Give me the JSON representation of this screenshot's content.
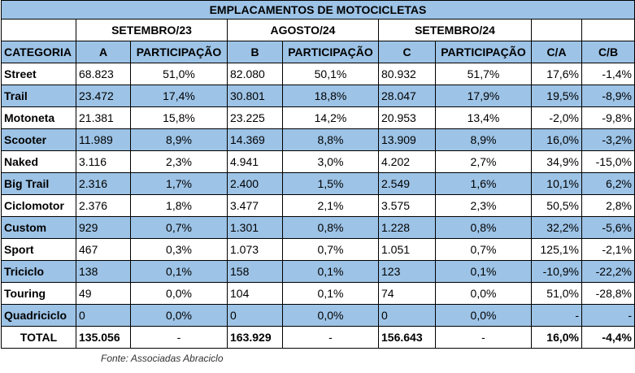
{
  "title": "EMPLACAMENTOS DE MOTOCICLETAS",
  "period_headers": [
    "SETEMBRO/23",
    "AGOSTO/24",
    "SETEMBRO/24"
  ],
  "columns": [
    "CATEGORIA",
    "A",
    "PARTICIPAÇÃO",
    "B",
    "PARTICIPAÇÃO",
    "C",
    "PARTICIPAÇÃO",
    "C/A",
    "C/B"
  ],
  "rows": [
    [
      "Street",
      "68.823",
      "51,0%",
      "82.080",
      "50,1%",
      "80.932",
      "51,7%",
      "17,6%",
      "-1,4%"
    ],
    [
      "Trail",
      "23.472",
      "17,4%",
      "30.801",
      "18,8%",
      "28.047",
      "17,9%",
      "19,5%",
      "-8,9%"
    ],
    [
      "Motoneta",
      "21.381",
      "15,8%",
      "23.225",
      "14,2%",
      "20.953",
      "13,4%",
      "-2,0%",
      "-9,8%"
    ],
    [
      "Scooter",
      "11.989",
      "8,9%",
      "14.369",
      "8,8%",
      "13.909",
      "8,9%",
      "16,0%",
      "-3,2%"
    ],
    [
      "Naked",
      "3.116",
      "2,3%",
      "4.941",
      "3,0%",
      "4.202",
      "2,7%",
      "34,9%",
      "-15,0%"
    ],
    [
      "Big Trail",
      "2.316",
      "1,7%",
      "2.400",
      "1,5%",
      "2.549",
      "1,6%",
      "10,1%",
      "6,2%"
    ],
    [
      "Ciclomotor",
      "2.376",
      "1,8%",
      "3.477",
      "2,1%",
      "3.575",
      "2,3%",
      "50,5%",
      "2,8%"
    ],
    [
      "Custom",
      "929",
      "0,7%",
      "1.301",
      "0,8%",
      "1.228",
      "0,8%",
      "32,2%",
      "-5,6%"
    ],
    [
      "Sport",
      "467",
      "0,3%",
      "1.073",
      "0,7%",
      "1.051",
      "0,7%",
      "125,1%",
      "-2,1%"
    ],
    [
      "Triciclo",
      "138",
      "0,1%",
      "158",
      "0,1%",
      "123",
      "0,1%",
      "-10,9%",
      "-22,2%"
    ],
    [
      "Touring",
      "49",
      "0,0%",
      "104",
      "0,1%",
      "74",
      "0,0%",
      "51,0%",
      "-28,8%"
    ],
    [
      "Quadriciclo",
      "0",
      "0,0%",
      "0",
      "0,0%",
      "0",
      "0,0%",
      "-",
      "-"
    ]
  ],
  "total": [
    "TOTAL",
    "135.056",
    "-",
    "163.929",
    "-",
    "156.643",
    "-",
    "16,0%",
    "-4,4%"
  ],
  "source": "Fonte: Associadas Abraciclo",
  "colors": {
    "header_fill": "#9dc3e6",
    "border": "#000000"
  }
}
